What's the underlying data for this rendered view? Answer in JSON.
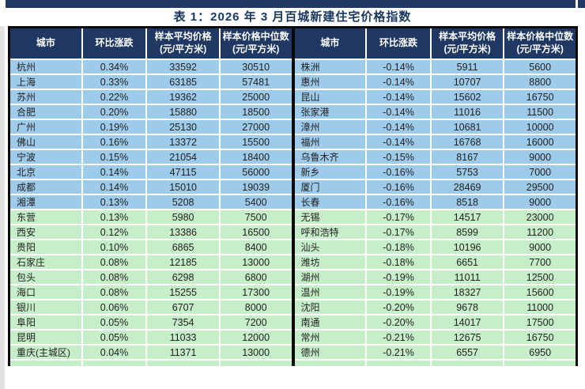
{
  "page": {
    "title": "表 1：2026 年 3 月百城新建住宅价格指数"
  },
  "colors": {
    "header_bg": "#1f3864",
    "title_color": "#17375e",
    "row_blue": "#9fcbeb",
    "row_green": "#c6eec8"
  },
  "table": {
    "columns": [
      {
        "label": "城市",
        "sub": ""
      },
      {
        "label": "环比涨跌",
        "sub": ""
      },
      {
        "label": "样本平均价格",
        "sub": "(元/平方米)"
      },
      {
        "label": "样本价格中位数",
        "sub": "(元/平方米)"
      }
    ],
    "left_rows": [
      {
        "city": "杭州",
        "change": "0.34%",
        "avg": "33592",
        "median": "30510",
        "tone": "blue"
      },
      {
        "city": "上海",
        "change": "0.33%",
        "avg": "63185",
        "median": "57481",
        "tone": "blue"
      },
      {
        "city": "苏州",
        "change": "0.22%",
        "avg": "19362",
        "median": "25000",
        "tone": "blue"
      },
      {
        "city": "合肥",
        "change": "0.20%",
        "avg": "15880",
        "median": "18500",
        "tone": "blue"
      },
      {
        "city": "广州",
        "change": "0.19%",
        "avg": "25130",
        "median": "27000",
        "tone": "blue"
      },
      {
        "city": "佛山",
        "change": "0.16%",
        "avg": "13372",
        "median": "15500",
        "tone": "blue"
      },
      {
        "city": "宁波",
        "change": "0.15%",
        "avg": "21054",
        "median": "18400",
        "tone": "blue"
      },
      {
        "city": "北京",
        "change": "0.14%",
        "avg": "47115",
        "median": "56000",
        "tone": "blue"
      },
      {
        "city": "成都",
        "change": "0.14%",
        "avg": "15010",
        "median": "19039",
        "tone": "blue"
      },
      {
        "city": "湘潭",
        "change": "0.13%",
        "avg": "5208",
        "median": "5400",
        "tone": "blue"
      },
      {
        "city": "东营",
        "change": "0.13%",
        "avg": "5980",
        "median": "7500",
        "tone": "green"
      },
      {
        "city": "西安",
        "change": "0.12%",
        "avg": "13386",
        "median": "16500",
        "tone": "green"
      },
      {
        "city": "贵阳",
        "change": "0.10%",
        "avg": "6865",
        "median": "8400",
        "tone": "green"
      },
      {
        "city": "石家庄",
        "change": "0.08%",
        "avg": "12185",
        "median": "13000",
        "tone": "green"
      },
      {
        "city": "包头",
        "change": "0.08%",
        "avg": "6298",
        "median": "6800",
        "tone": "green"
      },
      {
        "city": "海口",
        "change": "0.08%",
        "avg": "15255",
        "median": "17300",
        "tone": "green"
      },
      {
        "city": "银川",
        "change": "0.06%",
        "avg": "6707",
        "median": "8000",
        "tone": "green"
      },
      {
        "city": "阜阳",
        "change": "0.05%",
        "avg": "7354",
        "median": "7200",
        "tone": "green"
      },
      {
        "city": "昆明",
        "change": "0.05%",
        "avg": "11033",
        "median": "12000",
        "tone": "green"
      },
      {
        "city": "重庆(主城区)",
        "change": "0.04%",
        "avg": "11371",
        "median": "13000",
        "tone": "green"
      }
    ],
    "right_rows": [
      {
        "city": "株洲",
        "change": "-0.14%",
        "avg": "5911",
        "median": "5600",
        "tone": "blue"
      },
      {
        "city": "惠州",
        "change": "-0.14%",
        "avg": "10707",
        "median": "8800",
        "tone": "blue"
      },
      {
        "city": "昆山",
        "change": "-0.14%",
        "avg": "15602",
        "median": "16750",
        "tone": "blue"
      },
      {
        "city": "张家港",
        "change": "-0.14%",
        "avg": "11016",
        "median": "11500",
        "tone": "blue"
      },
      {
        "city": "漳州",
        "change": "-0.14%",
        "avg": "10681",
        "median": "10000",
        "tone": "blue"
      },
      {
        "city": "福州",
        "change": "-0.14%",
        "avg": "16768",
        "median": "16000",
        "tone": "blue"
      },
      {
        "city": "乌鲁木齐",
        "change": "-0.15%",
        "avg": "8167",
        "median": "9000",
        "tone": "blue"
      },
      {
        "city": "新乡",
        "change": "-0.16%",
        "avg": "5753",
        "median": "7000",
        "tone": "blue"
      },
      {
        "city": "厦门",
        "change": "-0.16%",
        "avg": "28469",
        "median": "29500",
        "tone": "blue"
      },
      {
        "city": "长春",
        "change": "-0.16%",
        "avg": "8518",
        "median": "9000",
        "tone": "blue"
      },
      {
        "city": "无锡",
        "change": "-0.17%",
        "avg": "14517",
        "median": "23000",
        "tone": "green"
      },
      {
        "city": "呼和浩特",
        "change": "-0.17%",
        "avg": "8599",
        "median": "11200",
        "tone": "green"
      },
      {
        "city": "汕头",
        "change": "-0.18%",
        "avg": "10196",
        "median": "9000",
        "tone": "green"
      },
      {
        "city": "潍坊",
        "change": "-0.18%",
        "avg": "6651",
        "median": "7700",
        "tone": "green"
      },
      {
        "city": "湖州",
        "change": "-0.19%",
        "avg": "11011",
        "median": "12500",
        "tone": "green"
      },
      {
        "city": "温州",
        "change": "-0.19%",
        "avg": "18327",
        "median": "15600",
        "tone": "green"
      },
      {
        "city": "沈阳",
        "change": "-0.20%",
        "avg": "9678",
        "median": "11000",
        "tone": "green"
      },
      {
        "city": "南通",
        "change": "-0.20%",
        "avg": "14017",
        "median": "17500",
        "tone": "green"
      },
      {
        "city": "常州",
        "change": "-0.21%",
        "avg": "12675",
        "median": "16750",
        "tone": "green"
      },
      {
        "city": "德州",
        "change": "-0.21%",
        "avg": "6557",
        "median": "6950",
        "tone": "green"
      }
    ]
  }
}
